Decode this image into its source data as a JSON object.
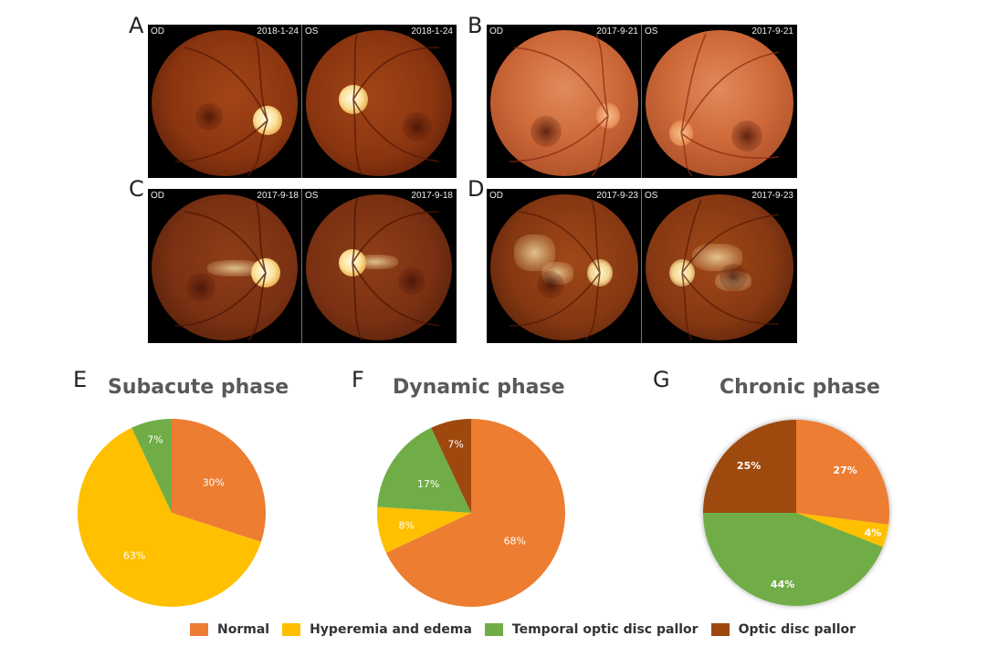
{
  "panels": {
    "A": {
      "letter": "A",
      "od": "OD",
      "os": "OS",
      "od_date": "2018-1-24",
      "os_date": "2018-1-24"
    },
    "B": {
      "letter": "B",
      "od": "OD",
      "os": "OS",
      "od_date": "2017-9-21",
      "os_date": "2017-9-21"
    },
    "C": {
      "letter": "C",
      "od": "OD",
      "os": "OS",
      "od_date": "2017-9-18",
      "os_date": "2017-9-18"
    },
    "D": {
      "letter": "D",
      "od": "OD",
      "os": "OS",
      "od_date": "2017-9-23",
      "os_date": "2017-9-23"
    }
  },
  "chart_letters": {
    "E": "E",
    "F": "F",
    "G": "G"
  },
  "legend": [
    {
      "label": "Normal",
      "color": "#ED7D31"
    },
    {
      "label": "Hyperemia and edema",
      "color": "#FFC000"
    },
    {
      "label": "Temporal optic disc pallor",
      "color": "#70AD47"
    },
    {
      "label": "Optic disc pallor",
      "color": "#9E480E"
    }
  ],
  "chart_data": [
    {
      "type": "pie",
      "title": "Subacute phase",
      "categories": [
        "Normal",
        "Hyperemia and edema",
        "Temporal optic disc pallor",
        "Optic disc pallor"
      ],
      "values": [
        30,
        63,
        7,
        0
      ],
      "labels": [
        "30%",
        "63%",
        "7%",
        ""
      ],
      "label_color": "#ffffff"
    },
    {
      "type": "pie",
      "title": "Dynamic phase",
      "categories": [
        "Normal",
        "Hyperemia and edema",
        "Temporal optic disc pallor",
        "Optic disc pallor"
      ],
      "values": [
        68,
        8,
        17,
        7
      ],
      "labels": [
        "68%",
        "8%",
        "17%",
        "7%"
      ],
      "label_color": "#ffffff"
    },
    {
      "type": "pie",
      "title": "Chronic phase",
      "categories": [
        "Normal",
        "Hyperemia and edema",
        "Temporal optic disc pallor",
        "Optic disc pallor"
      ],
      "values": [
        27,
        4,
        44,
        25
      ],
      "labels": [
        "27%",
        "4%",
        "44%",
        "25%"
      ],
      "label_color": "#ffffff"
    }
  ]
}
